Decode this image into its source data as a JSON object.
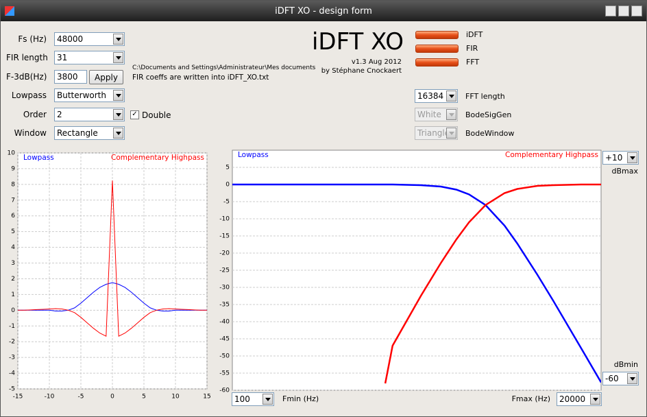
{
  "window": {
    "title": "iDFT XO - design form"
  },
  "form": {
    "fields": [
      {
        "label": "Fs (Hz)",
        "value": "48000"
      },
      {
        "label": "FIR length",
        "value": "31"
      },
      {
        "label": "F-3dB(Hz)",
        "value": "3800"
      },
      {
        "label": "Lowpass",
        "value": "Butterworth"
      },
      {
        "label": "Order",
        "value": "2"
      },
      {
        "label": "Window",
        "value": "Rectangle"
      }
    ],
    "apply": "Apply",
    "double": "Double",
    "path": "C:\\Documents and Settings\\Administrateur\\Mes documents",
    "coeffs_note": "FIR coeffs are written into iDFT_XO.txt"
  },
  "header": {
    "title": "iDFT XO",
    "version": "v1.3 Aug 2012",
    "author": "by Stéphane Cnockaert"
  },
  "legend_buttons": [
    "iDFT",
    "FIR",
    "FFT"
  ],
  "fft": {
    "fft_length": {
      "value": "16384",
      "label": "FFT length"
    },
    "bode_sig_gen": {
      "value": "White",
      "label": "BodeSigGen"
    },
    "bode_window": {
      "value": "Triangle",
      "label": "BodeWindow"
    }
  },
  "bode_controls": {
    "dbmax": {
      "value": "+10",
      "label": "dBmax"
    },
    "dbmin": {
      "value": "-60",
      "label": "dBmin"
    },
    "fmin": {
      "value": "100",
      "label": "Fmin (Hz)"
    },
    "fmax": {
      "value": "20000",
      "label": "Fmax (Hz)"
    }
  },
  "chart_data": [
    {
      "type": "line",
      "x": [
        -15,
        -14,
        -13,
        -12,
        -11,
        -10,
        -9,
        -8,
        -7,
        -6,
        -5,
        -4,
        -3,
        -2,
        -1,
        0,
        1,
        2,
        3,
        4,
        5,
        6,
        7,
        8,
        9,
        10,
        11,
        12,
        13,
        14,
        15
      ],
      "series": [
        {
          "name": "Lowpass",
          "color": "#0000ff",
          "values": [
            0,
            0,
            0,
            0,
            0,
            0,
            -0.05,
            -0.05,
            0,
            0.15,
            0.45,
            0.8,
            1.15,
            1.45,
            1.65,
            1.75,
            1.65,
            1.45,
            1.15,
            0.8,
            0.45,
            0.15,
            0,
            -0.05,
            -0.05,
            0,
            0,
            0,
            0,
            0,
            0
          ]
        },
        {
          "name": "Complementary Highpass",
          "color": "#ff0000",
          "values": [
            0,
            0,
            0.02,
            0.04,
            0.06,
            0.08,
            0.1,
            0.08,
            0,
            -0.15,
            -0.45,
            -0.8,
            -1.15,
            -1.45,
            -1.65,
            8.25,
            -1.65,
            -1.45,
            -1.15,
            -0.8,
            -0.45,
            -0.15,
            0,
            0.08,
            0.1,
            0.08,
            0.06,
            0.04,
            0.02,
            0,
            0
          ]
        }
      ],
      "xlim": [
        -15,
        15
      ],
      "xticks": [
        -15,
        -10,
        -5,
        0,
        5,
        10,
        15
      ],
      "ylim": [
        -5,
        10
      ],
      "yticks": [
        -5,
        -4,
        -3,
        -2,
        -1,
        0,
        1,
        2,
        3,
        4,
        5,
        6,
        7,
        8,
        9,
        10
      ],
      "grid": true
    },
    {
      "type": "line",
      "xscale": "log",
      "x": [
        100,
        200,
        300,
        500,
        700,
        900,
        1000,
        1500,
        2000,
        2500,
        3000,
        3800,
        5000,
        6000,
        8000,
        10000,
        15000,
        20000
      ],
      "series": [
        {
          "name": "Lowpass",
          "color": "#0000ff",
          "values": [
            0,
            0,
            0,
            0,
            0,
            0,
            0,
            -0.2,
            -0.6,
            -1.5,
            -2.9,
            -6,
            -12,
            -17.2,
            -26.3,
            -33.7,
            -47.7,
            -57.7
          ]
        },
        {
          "name": "Complementary Highpass",
          "color": "#ff0000",
          "values": [
            null,
            null,
            null,
            null,
            null,
            -58,
            -47,
            -32.5,
            -22.9,
            -16,
            -11,
            -6,
            -2.5,
            -1.3,
            -0.4,
            -0.2,
            0,
            0
          ]
        }
      ],
      "xlim": [
        100,
        20000
      ],
      "ylim": [
        -60,
        10
      ],
      "yticks": [
        -60,
        -55,
        -50,
        -45,
        -40,
        -35,
        -30,
        -25,
        -20,
        -15,
        -10,
        -5,
        0,
        5
      ],
      "grid": true
    }
  ]
}
